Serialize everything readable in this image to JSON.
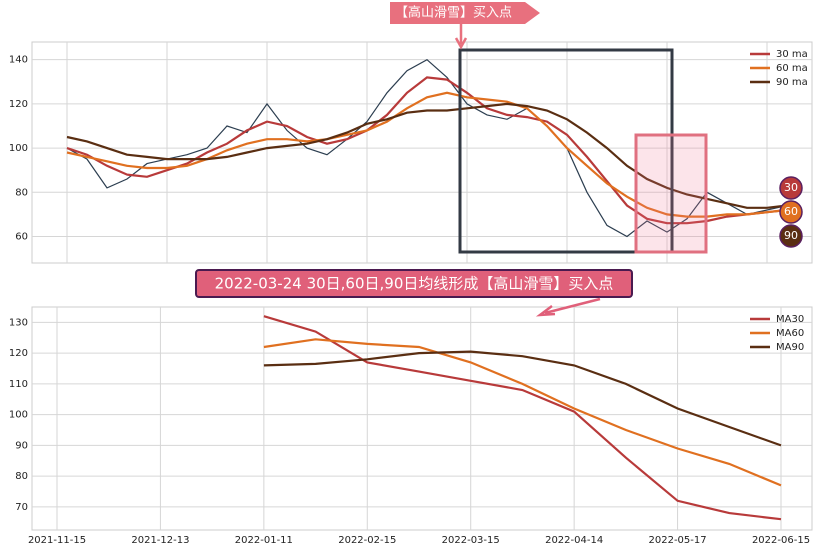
{
  "chart_data": [
    {
      "type": "line",
      "annotation": "【高山滑雪】买入点",
      "ylim": [
        48,
        148
      ],
      "yticks": [
        60,
        80,
        100,
        120,
        140
      ],
      "grid": true,
      "legend": "upper right",
      "end_labels": [
        "30",
        "60",
        "90"
      ],
      "series": [
        {
          "name": null,
          "color": "#2c3e50",
          "values": [
            100,
            95,
            82,
            86,
            93,
            95,
            97,
            100,
            110,
            107,
            120,
            108,
            100,
            97,
            104,
            112,
            125,
            135,
            140,
            132,
            120,
            115,
            113,
            118,
            110,
            100,
            80,
            65,
            60,
            67,
            62,
            68,
            80,
            75,
            70,
            72,
            74
          ]
        },
        {
          "name": "30 ma",
          "color": "#b83a3a",
          "values": [
            100,
            97,
            92,
            88,
            87,
            90,
            93,
            98,
            102,
            108,
            112,
            110,
            105,
            102,
            104,
            108,
            115,
            125,
            132,
            131,
            125,
            118,
            115,
            114,
            112,
            106,
            96,
            85,
            74,
            68,
            66,
            66,
            67,
            69,
            70,
            71,
            72
          ]
        },
        {
          "name": "60 ma",
          "color": "#e07020",
          "values": [
            98,
            96,
            94,
            92,
            91,
            91,
            92,
            95,
            99,
            102,
            104,
            104,
            103,
            104,
            106,
            108,
            112,
            118,
            123,
            125,
            123,
            122,
            121,
            118,
            110,
            100,
            92,
            84,
            78,
            73,
            70,
            69,
            69,
            70,
            70,
            71,
            72
          ]
        },
        {
          "name": "90 ma",
          "color": "#5a2e12",
          "values": [
            105,
            103,
            100,
            97,
            96,
            95,
            95,
            95,
            96,
            98,
            100,
            101,
            102,
            104,
            107,
            111,
            113,
            116,
            117,
            117,
            118,
            119,
            120,
            119,
            117,
            113,
            107,
            100,
            92,
            86,
            82,
            79,
            77,
            75,
            73,
            73,
            74
          ]
        }
      ]
    },
    {
      "type": "line",
      "annotation": "2022-03-24 30日,60日,90日均线形成【高山滑雪】买入点",
      "ylim": [
        62.5,
        135
      ],
      "yticks": [
        70,
        80,
        90,
        100,
        110,
        120,
        130
      ],
      "grid": true,
      "legend": "upper right",
      "categories": [
        "2021-11-15",
        null,
        "2021-12-13",
        null,
        "2022-01-11",
        null,
        "2022-02-15",
        null,
        "2022-03-15",
        null,
        "2022-04-14",
        null,
        "2022-05-17",
        null,
        "2022-06-15"
      ],
      "series": [
        {
          "name": "MA30",
          "color": "#b83a3a",
          "values": [
            null,
            null,
            null,
            null,
            132,
            127,
            117,
            114,
            111,
            108,
            101,
            86,
            72,
            68,
            66
          ]
        },
        {
          "name": "MA60",
          "color": "#e07020",
          "values": [
            null,
            null,
            null,
            null,
            122,
            124.5,
            123,
            122,
            117,
            110,
            102,
            95,
            89,
            84,
            77
          ]
        },
        {
          "name": "MA90",
          "color": "#5a2e12",
          "values": [
            null,
            null,
            null,
            null,
            116,
            116.5,
            118,
            120,
            120.5,
            119,
            116,
            110,
            102,
            96,
            90
          ]
        }
      ]
    }
  ]
}
